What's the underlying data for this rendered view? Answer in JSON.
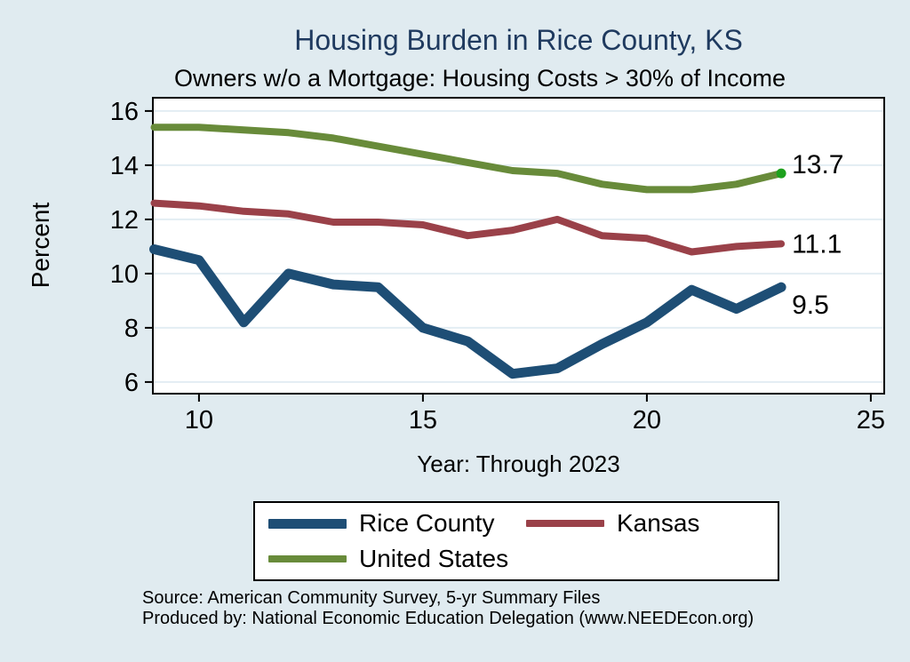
{
  "page": {
    "source_line1": "Source: American Community Survey, 5-yr Summary Files",
    "source_line2": "Produced by: National Economic Education Delegation (www.NEEDEcon.org)"
  },
  "colors": {
    "background": "#e0ebf0",
    "title_text": "#1f3a5f",
    "plot_background": "#ffffff",
    "gridline": "#e3edf3",
    "axis": "#000000",
    "last_point_marker": "#1da11d"
  },
  "chart_data": {
    "type": "line",
    "title": "Housing Burden in Rice County, KS",
    "subtitle": "Owners w/o a Mortgage: Housing Costs > 30% of Income",
    "xlabel": "Year: Through 2023",
    "ylabel": "Percent",
    "x": [
      9,
      10,
      11,
      12,
      13,
      14,
      15,
      16,
      17,
      18,
      19,
      20,
      21,
      22,
      23
    ],
    "series": [
      {
        "name": "Rice County",
        "color": "#1e4e75",
        "line_width": 11,
        "values": [
          10.9,
          10.5,
          8.2,
          10.0,
          9.6,
          9.5,
          8.0,
          7.5,
          6.3,
          6.5,
          7.4,
          8.2,
          9.4,
          8.7,
          9.5
        ],
        "end_label": "9.5"
      },
      {
        "name": "Kansas",
        "color": "#9a4149",
        "line_width": 8,
        "values": [
          12.6,
          12.5,
          12.3,
          12.2,
          11.9,
          11.9,
          11.8,
          11.4,
          11.6,
          12.0,
          11.4,
          11.3,
          10.8,
          11.0,
          11.1
        ],
        "end_label": "11.1"
      },
      {
        "name": "United States",
        "color": "#688b3a",
        "line_width": 8,
        "values": [
          15.4,
          15.4,
          15.3,
          15.2,
          15.0,
          14.7,
          14.4,
          14.1,
          13.8,
          13.7,
          13.3,
          13.1,
          13.1,
          13.3,
          13.7
        ],
        "end_label": "13.7",
        "end_marker": true
      }
    ],
    "xticks": [
      10,
      15,
      20,
      25
    ],
    "yticks": [
      6,
      8,
      10,
      12,
      14,
      16
    ],
    "xlim": [
      8.97,
      25.3
    ],
    "ylim": [
      5.57,
      16.49
    ],
    "grid": "horizontal only",
    "legend_position": "bottom"
  }
}
